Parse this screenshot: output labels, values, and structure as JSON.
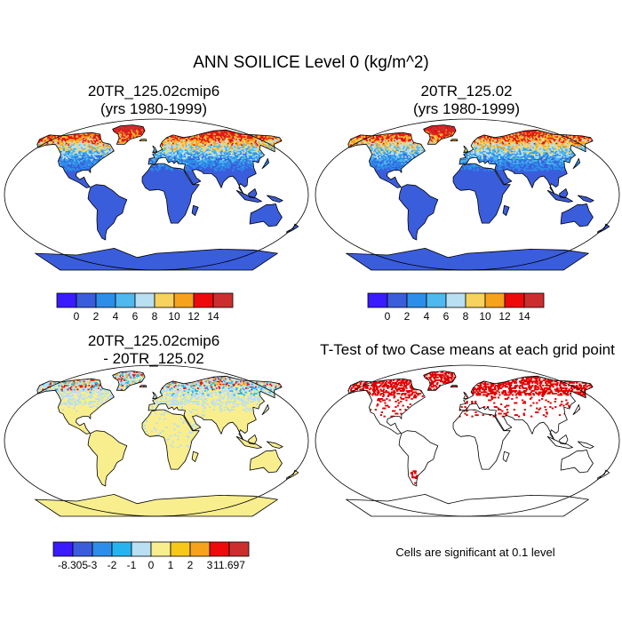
{
  "figure": {
    "title": "ANN SOILICE Level 0 (kg/m^2)",
    "panels": [
      {
        "title_lines": [
          "20TR_125.02cmip6",
          "(yrs 1980-1999)"
        ]
      },
      {
        "title_lines": [
          "20TR_125.02",
          "(yrs 1980-1999)"
        ]
      },
      {
        "title_lines": [
          "20TR_125.02cmip6",
          "- 20TR_125.02"
        ]
      },
      {
        "title_lines": [
          "T-Test of two Case means at each grid point"
        ]
      }
    ],
    "note": "Cells are significant at 0.1 level"
  },
  "colorbars": {
    "absolute": {
      "colors": [
        "#3a1aff",
        "#3a5ddc",
        "#2c8ee8",
        "#4fb8ee",
        "#b8dff2",
        "#f7d25c",
        "#f7a21c",
        "#ee0a0a",
        "#cc2e2e"
      ],
      "labels": [
        "0",
        "2",
        "4",
        "6",
        "8",
        "10",
        "12",
        "14"
      ]
    },
    "difference": {
      "colors": [
        "#3a1aff",
        "#3a5ddc",
        "#2c8ee8",
        "#26b4ee",
        "#b8dff2",
        "#f9ee8e",
        "#f7c81a",
        "#f7a21c",
        "#ee0a0a",
        "#cc2e2e"
      ],
      "labels": [
        "-8.305",
        "-3",
        "-2",
        "-1",
        "0",
        "1",
        "2",
        "3",
        "11.697"
      ]
    }
  },
  "colors": {
    "land_base_abs": "#3a5ddc",
    "land_base_diff": "#f9ee8e",
    "significant_cell": "#e00000"
  }
}
